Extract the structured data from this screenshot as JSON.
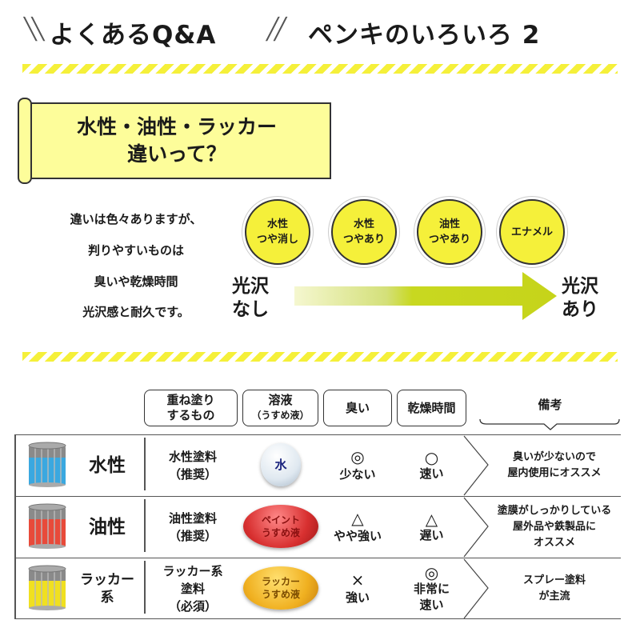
{
  "header": {
    "left_title": "よくあるQ&A",
    "right_title": "ペンキのいろいろ 2"
  },
  "banner": {
    "line1": "水性・油性・ラッカー",
    "line2": "違いって？"
  },
  "intro": [
    "違いは色々ありますが、",
    "判りやすいものは",
    "臭いや乾燥時間",
    "光沢感と耐久です。"
  ],
  "gloss": {
    "low": [
      "光沢",
      "なし"
    ],
    "high": [
      "光沢",
      "あり"
    ],
    "types": [
      [
        "水性",
        "つや消し"
      ],
      [
        "水性",
        "つやあり"
      ],
      [
        "油性",
        "つやあり"
      ],
      [
        "エナメル"
      ]
    ]
  },
  "colors": {
    "accent": "#f5f03a",
    "water": "#3aa8e0",
    "oil": "#e84a3a",
    "lacquer": "#f0e020"
  },
  "table": {
    "headers": [
      [
        "重ね塗り",
        "するもの"
      ],
      [
        "溶液",
        "（うすめ液）"
      ],
      [
        "臭い"
      ],
      [
        "乾燥時間"
      ],
      [
        "備考"
      ]
    ],
    "rows": [
      {
        "type": [
          "水性"
        ],
        "paint": [
          "水性塗料",
          "（推奨）"
        ],
        "solvent": [
          "水"
        ],
        "smell_mark": "◎",
        "smell": [
          "少ない"
        ],
        "dry_mark": "○",
        "dry": [
          "速い"
        ],
        "note": [
          "臭いが少ないので",
          "屋内使用にオススメ"
        ],
        "icon": "water-paint-can-icon"
      },
      {
        "type": [
          "油性"
        ],
        "paint": [
          "油性塗料",
          "（推奨）"
        ],
        "solvent": [
          "ペイント",
          "うすめ液"
        ],
        "smell_mark": "△",
        "smell": [
          "やや強い"
        ],
        "dry_mark": "△",
        "dry": [
          "遅い"
        ],
        "note": [
          "塗膜がしっかりしている",
          "屋外品や鉄製品に",
          "オススメ"
        ],
        "icon": "oil-paint-can-icon"
      },
      {
        "type": [
          "ラッカー",
          "系"
        ],
        "paint": [
          "ラッカー系",
          "塗料",
          "（必須）"
        ],
        "solvent": [
          "ラッカー",
          "うすめ液"
        ],
        "smell_mark": "×",
        "smell": [
          "強い"
        ],
        "dry_mark": "◎",
        "dry": [
          "非常に",
          "速い"
        ],
        "note": [
          "スプレー塗料",
          "が主流"
        ],
        "icon": "lacquer-paint-can-icon"
      }
    ]
  }
}
